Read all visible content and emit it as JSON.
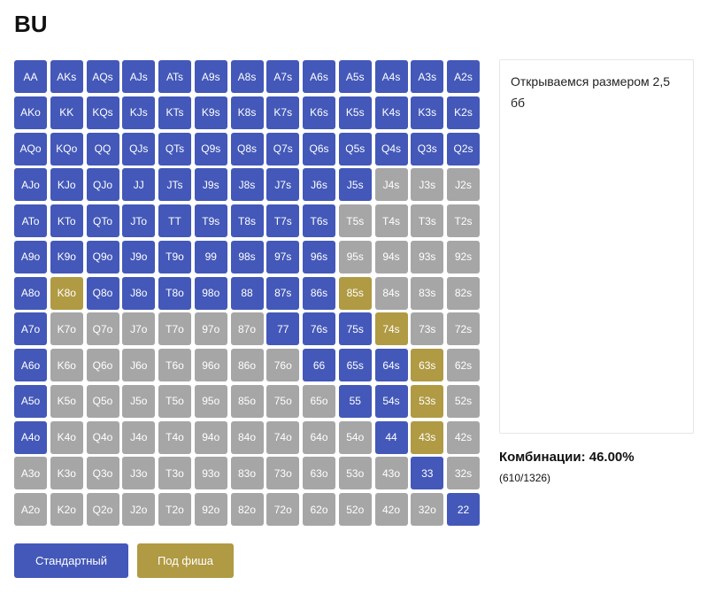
{
  "title": "BU",
  "note_text": "Открываемся размером 2,5 бб",
  "combos_label": "Комбинации: 46.00%",
  "combos_count": "(610/1326)",
  "buttons": {
    "standard": "Стандартный",
    "push": "Под фиша"
  },
  "colors": {
    "standard": "#4358b8",
    "push": "#b09a43",
    "fold": "#a6a6a6"
  },
  "grid": [
    {
      "hand": "AA",
      "action": "s"
    },
    {
      "hand": "AKs",
      "action": "s"
    },
    {
      "hand": "AQs",
      "action": "s"
    },
    {
      "hand": "AJs",
      "action": "s"
    },
    {
      "hand": "ATs",
      "action": "s"
    },
    {
      "hand": "A9s",
      "action": "s"
    },
    {
      "hand": "A8s",
      "action": "s"
    },
    {
      "hand": "A7s",
      "action": "s"
    },
    {
      "hand": "A6s",
      "action": "s"
    },
    {
      "hand": "A5s",
      "action": "s"
    },
    {
      "hand": "A4s",
      "action": "s"
    },
    {
      "hand": "A3s",
      "action": "s"
    },
    {
      "hand": "A2s",
      "action": "s"
    },
    {
      "hand": "AKo",
      "action": "s"
    },
    {
      "hand": "KK",
      "action": "s"
    },
    {
      "hand": "KQs",
      "action": "s"
    },
    {
      "hand": "KJs",
      "action": "s"
    },
    {
      "hand": "KTs",
      "action": "s"
    },
    {
      "hand": "K9s",
      "action": "s"
    },
    {
      "hand": "K8s",
      "action": "s"
    },
    {
      "hand": "K7s",
      "action": "s"
    },
    {
      "hand": "K6s",
      "action": "s"
    },
    {
      "hand": "K5s",
      "action": "s"
    },
    {
      "hand": "K4s",
      "action": "s"
    },
    {
      "hand": "K3s",
      "action": "s"
    },
    {
      "hand": "K2s",
      "action": "s"
    },
    {
      "hand": "AQo",
      "action": "s"
    },
    {
      "hand": "KQo",
      "action": "s"
    },
    {
      "hand": "QQ",
      "action": "s"
    },
    {
      "hand": "QJs",
      "action": "s"
    },
    {
      "hand": "QTs",
      "action": "s"
    },
    {
      "hand": "Q9s",
      "action": "s"
    },
    {
      "hand": "Q8s",
      "action": "s"
    },
    {
      "hand": "Q7s",
      "action": "s"
    },
    {
      "hand": "Q6s",
      "action": "s"
    },
    {
      "hand": "Q5s",
      "action": "s"
    },
    {
      "hand": "Q4s",
      "action": "s"
    },
    {
      "hand": "Q3s",
      "action": "s"
    },
    {
      "hand": "Q2s",
      "action": "s"
    },
    {
      "hand": "AJo",
      "action": "s"
    },
    {
      "hand": "KJo",
      "action": "s"
    },
    {
      "hand": "QJo",
      "action": "s"
    },
    {
      "hand": "JJ",
      "action": "s"
    },
    {
      "hand": "JTs",
      "action": "s"
    },
    {
      "hand": "J9s",
      "action": "s"
    },
    {
      "hand": "J8s",
      "action": "s"
    },
    {
      "hand": "J7s",
      "action": "s"
    },
    {
      "hand": "J6s",
      "action": "s"
    },
    {
      "hand": "J5s",
      "action": "s"
    },
    {
      "hand": "J4s",
      "action": "n"
    },
    {
      "hand": "J3s",
      "action": "n"
    },
    {
      "hand": "J2s",
      "action": "n"
    },
    {
      "hand": "ATo",
      "action": "s"
    },
    {
      "hand": "KTo",
      "action": "s"
    },
    {
      "hand": "QTo",
      "action": "s"
    },
    {
      "hand": "JTo",
      "action": "s"
    },
    {
      "hand": "TT",
      "action": "s"
    },
    {
      "hand": "T9s",
      "action": "s"
    },
    {
      "hand": "T8s",
      "action": "s"
    },
    {
      "hand": "T7s",
      "action": "s"
    },
    {
      "hand": "T6s",
      "action": "s"
    },
    {
      "hand": "T5s",
      "action": "n"
    },
    {
      "hand": "T4s",
      "action": "n"
    },
    {
      "hand": "T3s",
      "action": "n"
    },
    {
      "hand": "T2s",
      "action": "n"
    },
    {
      "hand": "A9o",
      "action": "s"
    },
    {
      "hand": "K9o",
      "action": "s"
    },
    {
      "hand": "Q9o",
      "action": "s"
    },
    {
      "hand": "J9o",
      "action": "s"
    },
    {
      "hand": "T9o",
      "action": "s"
    },
    {
      "hand": "99",
      "action": "s"
    },
    {
      "hand": "98s",
      "action": "s"
    },
    {
      "hand": "97s",
      "action": "s"
    },
    {
      "hand": "96s",
      "action": "s"
    },
    {
      "hand": "95s",
      "action": "n"
    },
    {
      "hand": "94s",
      "action": "n"
    },
    {
      "hand": "93s",
      "action": "n"
    },
    {
      "hand": "92s",
      "action": "n"
    },
    {
      "hand": "A8o",
      "action": "s"
    },
    {
      "hand": "K8o",
      "action": "g"
    },
    {
      "hand": "Q8o",
      "action": "s"
    },
    {
      "hand": "J8o",
      "action": "s"
    },
    {
      "hand": "T8o",
      "action": "s"
    },
    {
      "hand": "98o",
      "action": "s"
    },
    {
      "hand": "88",
      "action": "s"
    },
    {
      "hand": "87s",
      "action": "s"
    },
    {
      "hand": "86s",
      "action": "s"
    },
    {
      "hand": "85s",
      "action": "g"
    },
    {
      "hand": "84s",
      "action": "n"
    },
    {
      "hand": "83s",
      "action": "n"
    },
    {
      "hand": "82s",
      "action": "n"
    },
    {
      "hand": "A7o",
      "action": "s"
    },
    {
      "hand": "K7o",
      "action": "n"
    },
    {
      "hand": "Q7o",
      "action": "n"
    },
    {
      "hand": "J7o",
      "action": "n"
    },
    {
      "hand": "T7o",
      "action": "n"
    },
    {
      "hand": "97o",
      "action": "n"
    },
    {
      "hand": "87o",
      "action": "n"
    },
    {
      "hand": "77",
      "action": "s"
    },
    {
      "hand": "76s",
      "action": "s"
    },
    {
      "hand": "75s",
      "action": "s"
    },
    {
      "hand": "74s",
      "action": "g"
    },
    {
      "hand": "73s",
      "action": "n"
    },
    {
      "hand": "72s",
      "action": "n"
    },
    {
      "hand": "A6o",
      "action": "s"
    },
    {
      "hand": "K6o",
      "action": "n"
    },
    {
      "hand": "Q6o",
      "action": "n"
    },
    {
      "hand": "J6o",
      "action": "n"
    },
    {
      "hand": "T6o",
      "action": "n"
    },
    {
      "hand": "96o",
      "action": "n"
    },
    {
      "hand": "86o",
      "action": "n"
    },
    {
      "hand": "76o",
      "action": "n"
    },
    {
      "hand": "66",
      "action": "s"
    },
    {
      "hand": "65s",
      "action": "s"
    },
    {
      "hand": "64s",
      "action": "s"
    },
    {
      "hand": "63s",
      "action": "g"
    },
    {
      "hand": "62s",
      "action": "n"
    },
    {
      "hand": "A5o",
      "action": "s"
    },
    {
      "hand": "K5o",
      "action": "n"
    },
    {
      "hand": "Q5o",
      "action": "n"
    },
    {
      "hand": "J5o",
      "action": "n"
    },
    {
      "hand": "T5o",
      "action": "n"
    },
    {
      "hand": "95o",
      "action": "n"
    },
    {
      "hand": "85o",
      "action": "n"
    },
    {
      "hand": "75o",
      "action": "n"
    },
    {
      "hand": "65o",
      "action": "n"
    },
    {
      "hand": "55",
      "action": "s"
    },
    {
      "hand": "54s",
      "action": "s"
    },
    {
      "hand": "53s",
      "action": "g"
    },
    {
      "hand": "52s",
      "action": "n"
    },
    {
      "hand": "A4o",
      "action": "s"
    },
    {
      "hand": "K4o",
      "action": "n"
    },
    {
      "hand": "Q4o",
      "action": "n"
    },
    {
      "hand": "J4o",
      "action": "n"
    },
    {
      "hand": "T4o",
      "action": "n"
    },
    {
      "hand": "94o",
      "action": "n"
    },
    {
      "hand": "84o",
      "action": "n"
    },
    {
      "hand": "74o",
      "action": "n"
    },
    {
      "hand": "64o",
      "action": "n"
    },
    {
      "hand": "54o",
      "action": "n"
    },
    {
      "hand": "44",
      "action": "s"
    },
    {
      "hand": "43s",
      "action": "g"
    },
    {
      "hand": "42s",
      "action": "n"
    },
    {
      "hand": "A3o",
      "action": "n"
    },
    {
      "hand": "K3o",
      "action": "n"
    },
    {
      "hand": "Q3o",
      "action": "n"
    },
    {
      "hand": "J3o",
      "action": "n"
    },
    {
      "hand": "T3o",
      "action": "n"
    },
    {
      "hand": "93o",
      "action": "n"
    },
    {
      "hand": "83o",
      "action": "n"
    },
    {
      "hand": "73o",
      "action": "n"
    },
    {
      "hand": "63o",
      "action": "n"
    },
    {
      "hand": "53o",
      "action": "n"
    },
    {
      "hand": "43o",
      "action": "n"
    },
    {
      "hand": "33",
      "action": "s"
    },
    {
      "hand": "32s",
      "action": "n"
    },
    {
      "hand": "A2o",
      "action": "n"
    },
    {
      "hand": "K2o",
      "action": "n"
    },
    {
      "hand": "Q2o",
      "action": "n"
    },
    {
      "hand": "J2o",
      "action": "n"
    },
    {
      "hand": "T2o",
      "action": "n"
    },
    {
      "hand": "92o",
      "action": "n"
    },
    {
      "hand": "82o",
      "action": "n"
    },
    {
      "hand": "72o",
      "action": "n"
    },
    {
      "hand": "62o",
      "action": "n"
    },
    {
      "hand": "52o",
      "action": "n"
    },
    {
      "hand": "42o",
      "action": "n"
    },
    {
      "hand": "32o",
      "action": "n"
    },
    {
      "hand": "22",
      "action": "s"
    }
  ]
}
